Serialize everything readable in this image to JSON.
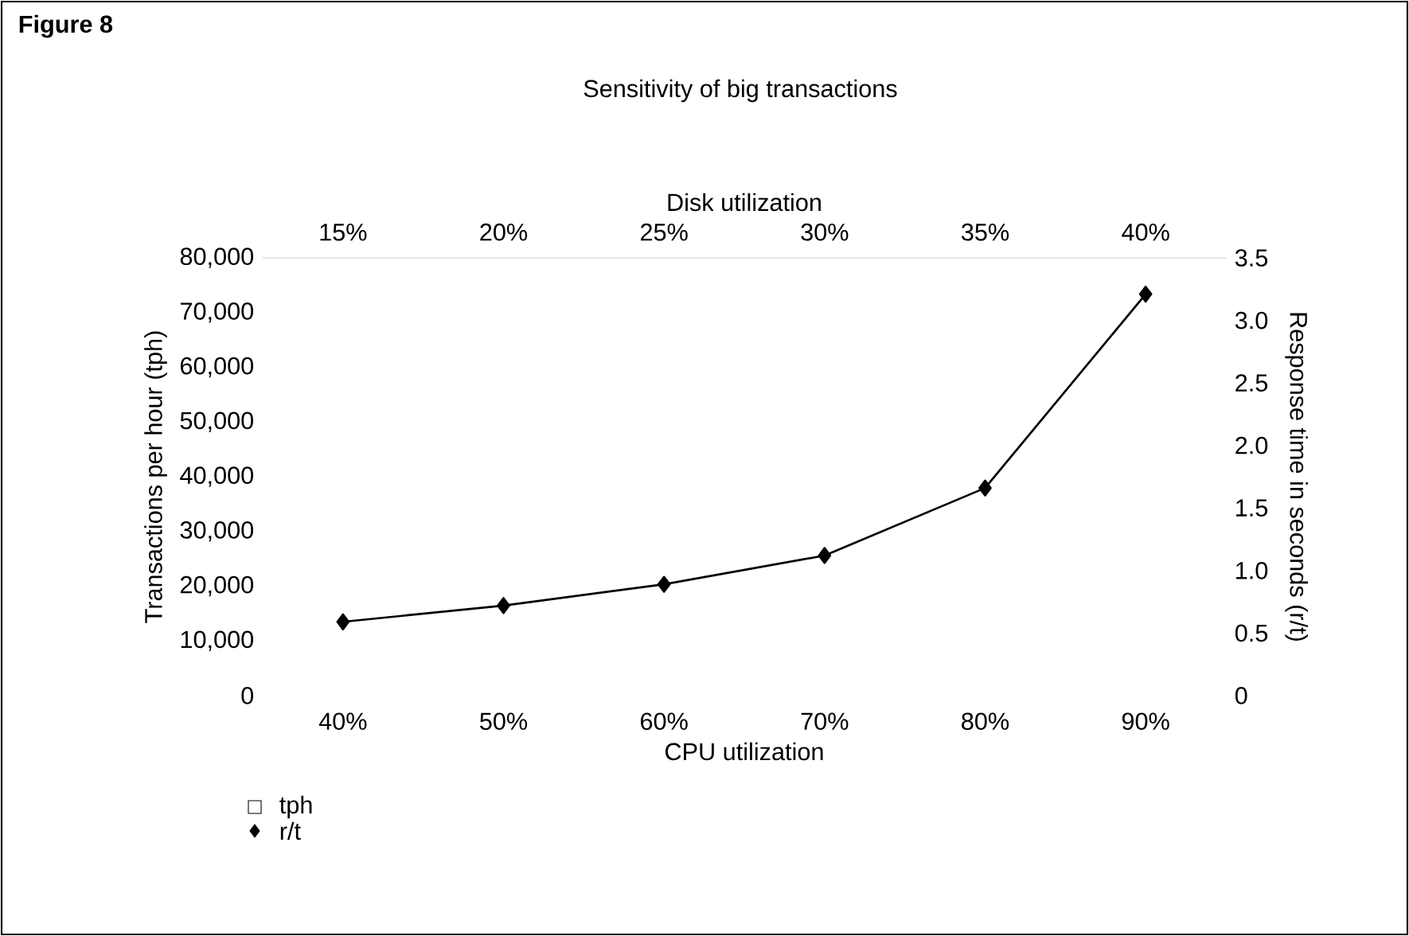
{
  "chart_data": {
    "type": "line",
    "title": "Figure 8",
    "subtitle": "Sensitivity of big transactions",
    "xlabel": "CPU utilization",
    "x2label": "Disk utilization",
    "ylabel": "Transactions per hour (tph)",
    "y2label": "Response time in seconds (r/t)",
    "categories": [
      "40%",
      "50%",
      "60%",
      "70%",
      "80%",
      "90%"
    ],
    "x2lim": [
      12.5,
      42.5
    ],
    "x2ticks": [
      {
        "value": 15,
        "label": "15%"
      },
      {
        "value": 20,
        "label": "20%"
      },
      {
        "value": 25,
        "label": "25%"
      },
      {
        "value": 30,
        "label": "30%"
      },
      {
        "value": 35,
        "label": "35%"
      },
      {
        "value": 40,
        "label": "40%"
      }
    ],
    "ylim": [
      0,
      80000
    ],
    "yticks": [
      {
        "value": 0,
        "label": "0"
      },
      {
        "value": 10000,
        "label": "10,000"
      },
      {
        "value": 20000,
        "label": "20,000"
      },
      {
        "value": 30000,
        "label": "30,000"
      },
      {
        "value": 40000,
        "label": "40,000"
      },
      {
        "value": 50000,
        "label": "50,000"
      },
      {
        "value": 60000,
        "label": "60,000"
      },
      {
        "value": 70000,
        "label": "70,000"
      },
      {
        "value": 80000,
        "label": "80,000"
      }
    ],
    "y2lim": [
      0,
      3.5
    ],
    "y2ticks": [
      {
        "value": 0,
        "label": "0"
      },
      {
        "value": 0.5,
        "label": "0.5"
      },
      {
        "value": 1.0,
        "label": "1.0"
      },
      {
        "value": 1.5,
        "label": "1.5"
      },
      {
        "value": 2.0,
        "label": "2.0"
      },
      {
        "value": 2.5,
        "label": "2.5"
      },
      {
        "value": 3.0,
        "label": "3.0"
      },
      {
        "value": 3.5,
        "label": "3.5"
      }
    ],
    "series": [
      {
        "name": "tph",
        "color": "#000000",
        "marker": "square",
        "values": [
          null,
          null,
          null,
          null,
          null,
          null
        ]
      },
      {
        "name": "r/t",
        "color": "#000000",
        "marker": "diamond",
        "axis": "y2",
        "values": [
          0.59,
          0.72,
          0.89,
          1.12,
          1.66,
          3.21
        ]
      }
    ],
    "legend": "bottom left"
  }
}
